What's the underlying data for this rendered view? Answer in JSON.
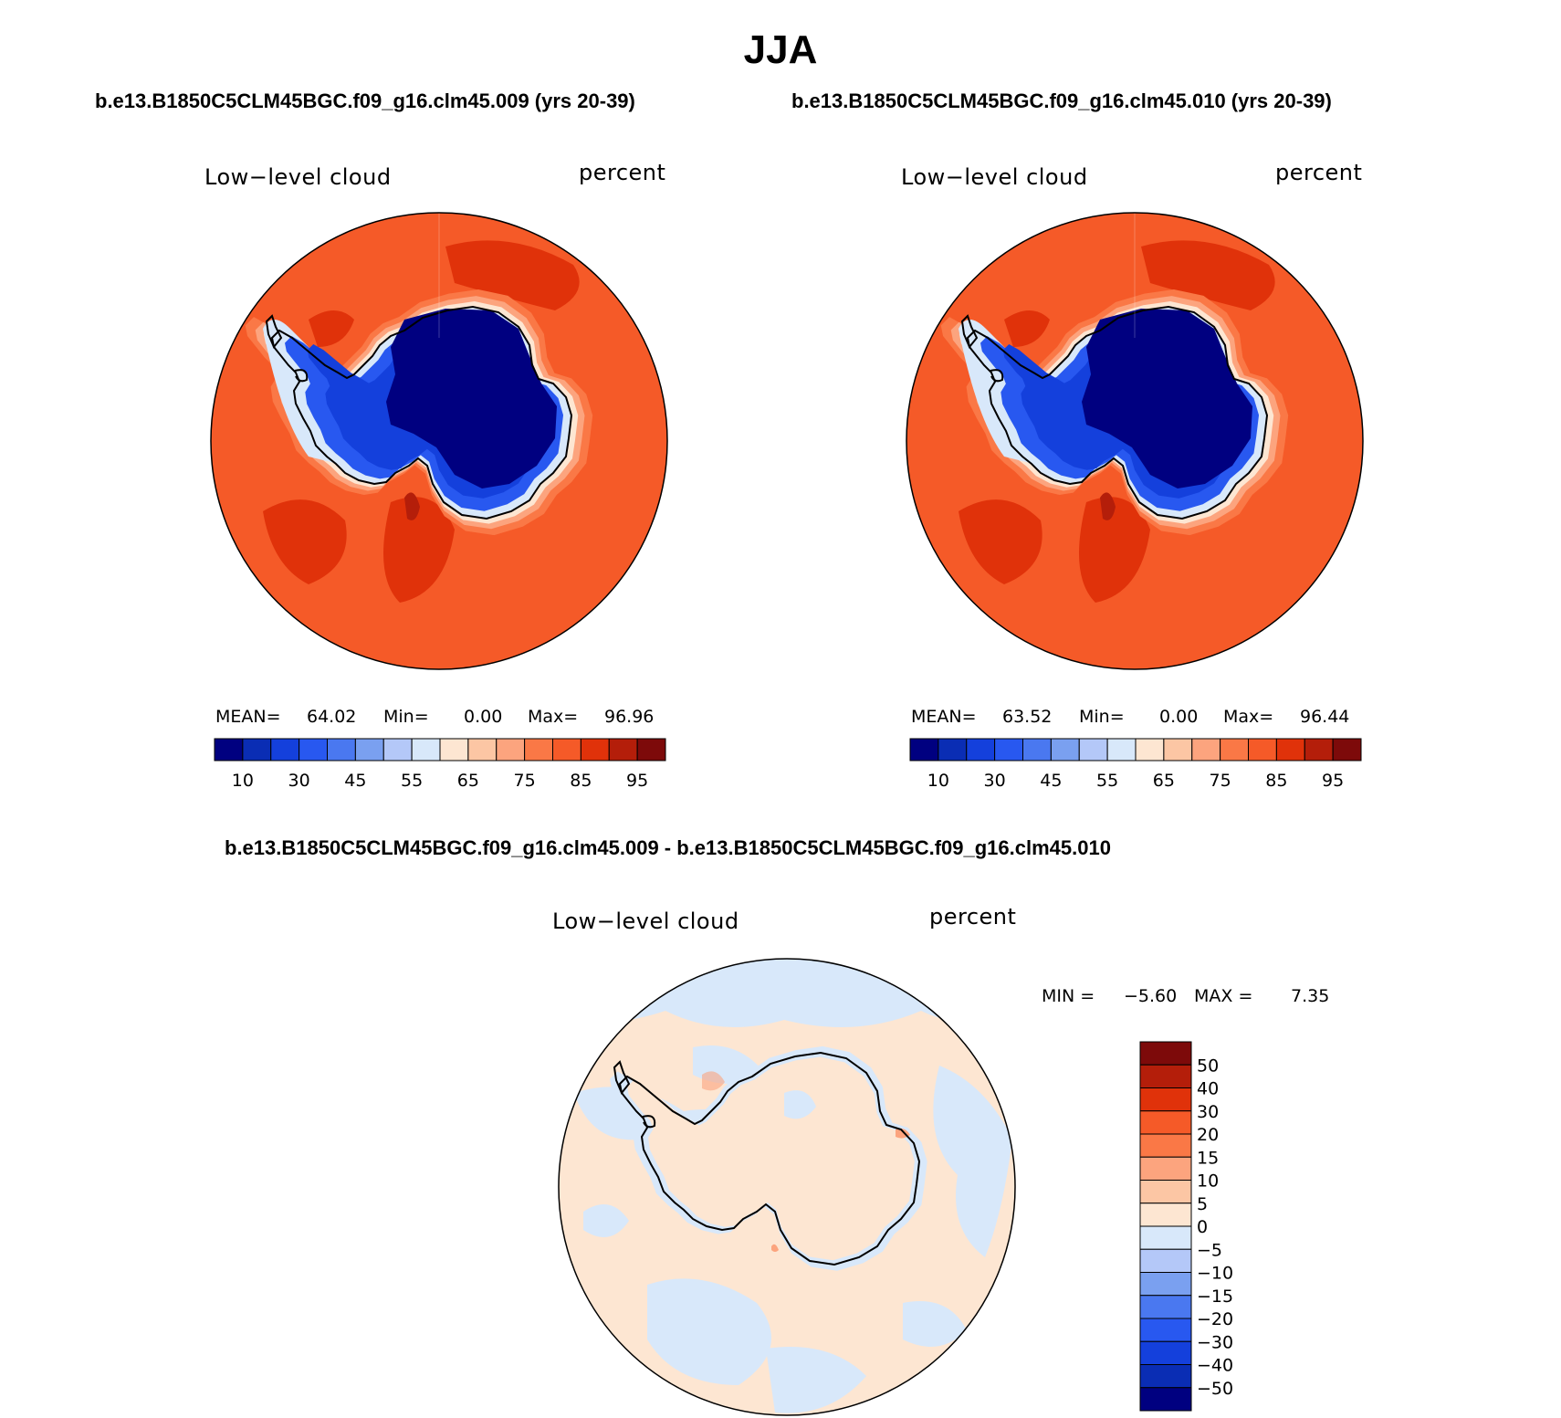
{
  "header": {
    "title": "JJA",
    "left_case": "b.e13.B1850C5CLM45BGC.f09_g16.clm45.009 (yrs 20-39)",
    "right_case": "b.e13.B1850C5CLM45BGC.f09_g16.clm45.010 (yrs 20-39)",
    "diff_case": "b.e13.B1850C5CLM45BGC.f09_g16.clm45.009 - b.e13.B1850C5CLM45BGC.f09_g16.clm45.010"
  },
  "panels": [
    {
      "id": "left",
      "variable": "Low−level cloud",
      "units": "percent",
      "mean_label": "MEAN=",
      "mean": "64.02",
      "min_label": "Min=",
      "min": "0.00",
      "max_label": "Max=",
      "max": "96.96"
    },
    {
      "id": "right",
      "variable": "Low−level cloud",
      "units": "percent",
      "mean_label": "MEAN=",
      "mean": "63.52",
      "min_label": "Min=",
      "min": "0.00",
      "max_label": "Max=",
      "max": "96.44"
    }
  ],
  "diff_panel": {
    "variable": "Low−level cloud",
    "units": "percent",
    "min_label": "MIN =",
    "min": "−5.60",
    "max_label": "MAX =",
    "max": "7.35"
  },
  "abs_colorbar": {
    "tick_labels": [
      "10",
      "30",
      "45",
      "55",
      "65",
      "75",
      "85",
      "95"
    ],
    "colors": [
      "#000080",
      "#0a2db4",
      "#1440dc",
      "#2858f0",
      "#4a78f0",
      "#7aa0f0",
      "#b4c8f8",
      "#d8e8fa",
      "#fde6d2",
      "#fcc6a4",
      "#fca47e",
      "#fa7846",
      "#f55a28",
      "#e0320a",
      "#b41e0a",
      "#7d0a0a"
    ]
  },
  "diff_colorbar": {
    "tick_labels": [
      "50",
      "40",
      "30",
      "20",
      "15",
      "10",
      "5",
      "0",
      "−5",
      "−10",
      "−15",
      "−20",
      "−30",
      "−40",
      "−50"
    ],
    "colors": [
      "#7d0a0a",
      "#b41e0a",
      "#e0320a",
      "#f55a28",
      "#fa7846",
      "#fca47e",
      "#fcc6a4",
      "#fde6d2",
      "#d8e8fa",
      "#b4c8f8",
      "#7aa0f0",
      "#4a78f0",
      "#2858f0",
      "#1440dc",
      "#0a2db4",
      "#000080"
    ]
  },
  "map_colors": {
    "ocean_high": "#f55a28",
    "ocean_higher": "#e0320a",
    "ocean_mid": "#fa7846",
    "ocean_light": "#fca47e",
    "coast_pale": "#fde6d2",
    "coast_ice": "#d8e8fa",
    "coast_blue": "#7aa0f0",
    "ice_edge": "#2858f0",
    "ice_mid": "#1440dc",
    "ice_core": "#000080",
    "peak": "#b41e0a",
    "diff_neutral": "#fde6d2",
    "diff_negative": "#d8e8fa",
    "diff_positive": "#fca47e"
  }
}
